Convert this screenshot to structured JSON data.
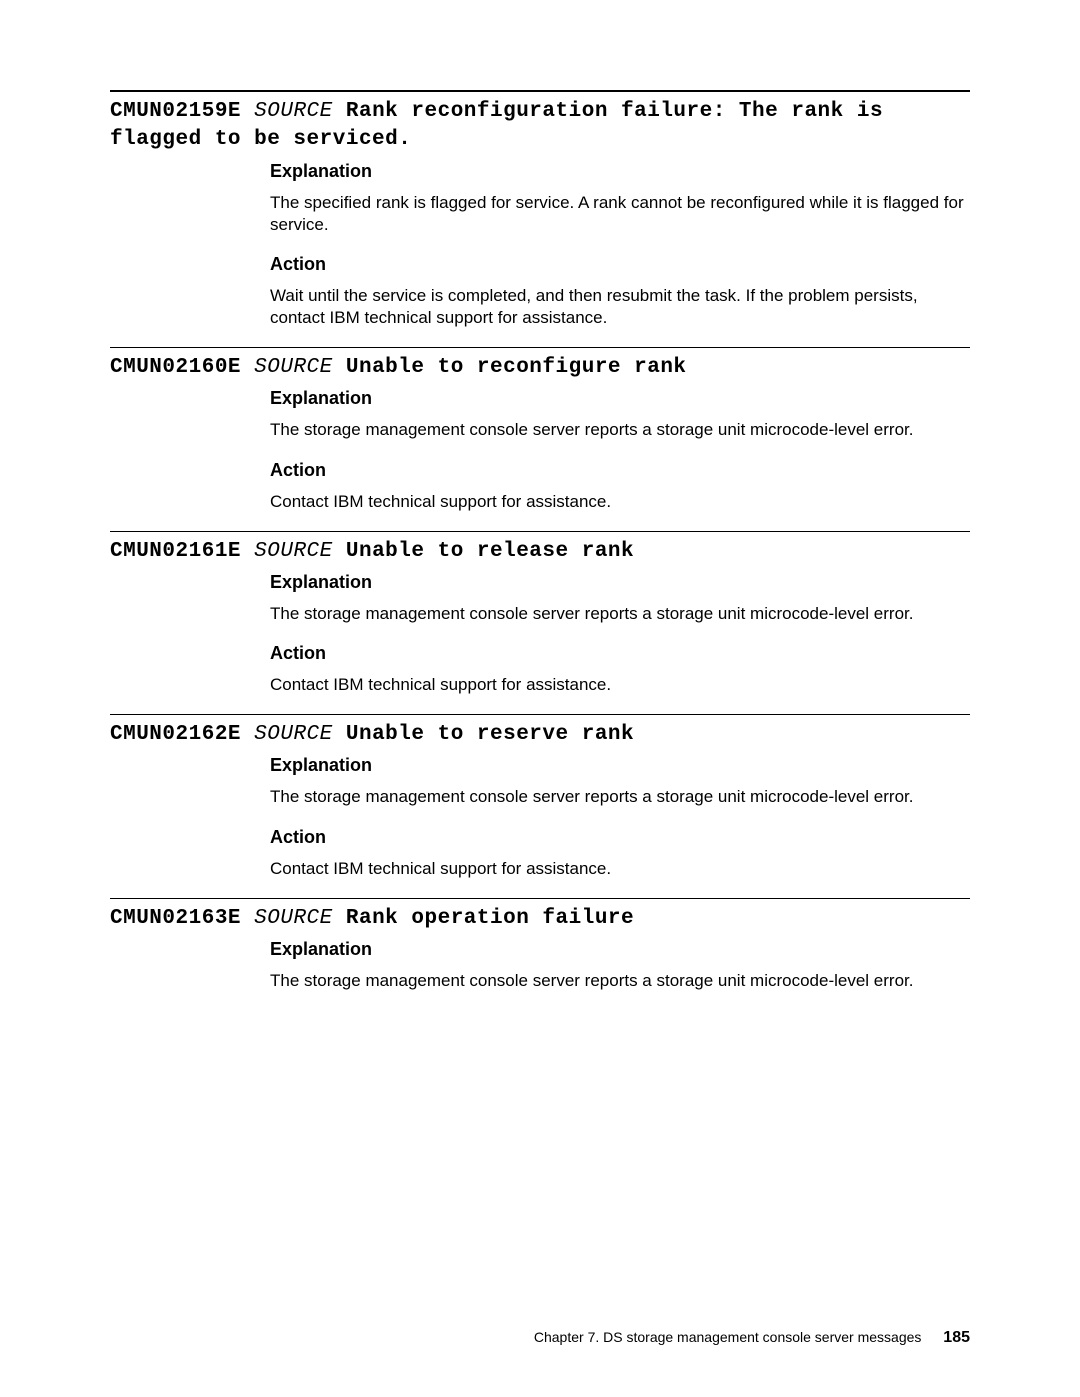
{
  "colors": {
    "rule": "#000000",
    "text": "#000000",
    "background": "#ffffff"
  },
  "typography": {
    "title_font": "Courier New",
    "title_size_pt": 16,
    "body_font": "Arial",
    "subhead_size_pt": 13,
    "body_size_pt": 12
  },
  "messages": [
    {
      "code": "CMUN02159E",
      "source": "SOURCE",
      "short": "Rank reconfiguration failure: The rank is flagged to be serviced.",
      "explanation": "The specified rank is flagged for service. A rank cannot be reconfigured while it is flagged for service.",
      "action": "Wait until the service is completed, and then resubmit the task. If the problem persists, contact IBM technical support for assistance."
    },
    {
      "code": "CMUN02160E",
      "source": "SOURCE",
      "short": "Unable to reconfigure rank",
      "explanation": "The storage management console server reports a storage unit microcode-level error.",
      "action": "Contact IBM technical support for assistance."
    },
    {
      "code": "CMUN02161E",
      "source": "SOURCE",
      "short": "Unable to release rank",
      "explanation": "The storage management console server reports a storage unit microcode-level error.",
      "action": "Contact IBM technical support for assistance."
    },
    {
      "code": "CMUN02162E",
      "source": "SOURCE",
      "short": "Unable to reserve rank",
      "explanation": "The storage management console server reports a storage unit microcode-level error.",
      "action": "Contact IBM technical support for assistance."
    },
    {
      "code": "CMUN02163E",
      "source": "SOURCE",
      "short": "Rank operation failure",
      "explanation": "The storage management console server reports a storage unit microcode-level error.",
      "action": null
    }
  ],
  "labels": {
    "explanation": "Explanation",
    "action": "Action"
  },
  "footer": {
    "chapter": "Chapter 7. DS storage management console server messages",
    "page": "185"
  }
}
